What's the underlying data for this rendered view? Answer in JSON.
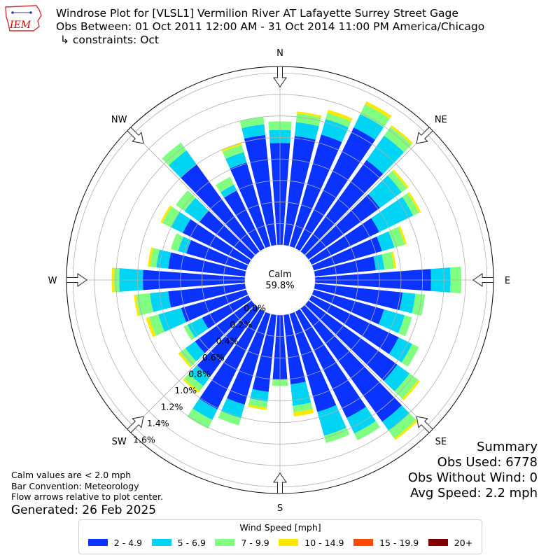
{
  "title": {
    "line1": "Windrose Plot for [VLSL1] Vermilion River  AT Lafayette  Surrey Street Gage",
    "line2": "Obs Between: 01 Oct 2011 12:00 AM - 31 Oct 2014 11:00 PM America/Chicago",
    "line3": "↳ constraints: Oct"
  },
  "logo": {
    "text": "IEM",
    "icon": "iowa-state-outline-logo",
    "color": "#cc0000"
  },
  "calm": {
    "label": "Calm",
    "value": "59.8%"
  },
  "notes": [
    "Calm values are < 2.0 mph",
    "Bar Convention: Meteorology",
    "Flow arrows relative to plot center."
  ],
  "generated": "Generated: 26 Feb 2025",
  "summary": {
    "title": "Summary",
    "obs_used": "Obs Used: 6778",
    "obs_without_wind": "Obs Without Wind: 0",
    "avg_speed": "Avg Speed: 2.2 mph"
  },
  "legend": {
    "title": "Wind Speed [mph]",
    "items": [
      {
        "label": "2 - 4.9",
        "color": "#0a33ff"
      },
      {
        "label": "5 - 6.9",
        "color": "#00d4f5"
      },
      {
        "label": "7 - 9.9",
        "color": "#80ff80"
      },
      {
        "label": "10 - 14.9",
        "color": "#ffe800"
      },
      {
        "label": "15 - 19.9",
        "color": "#ff4a00"
      },
      {
        "label": "20+",
        "color": "#800000"
      }
    ]
  },
  "chart_data": {
    "type": "windrose",
    "direction_labels": [
      "N",
      "NE",
      "E",
      "SE",
      "S",
      "SW",
      "W",
      "NW"
    ],
    "direction_angles_deg": [
      0,
      45,
      90,
      135,
      180,
      225,
      270,
      315
    ],
    "radial_tick_labels": [
      "0.0%",
      "0.2%",
      "0.4%",
      "0.6%",
      "0.8%",
      "1.0%",
      "1.2%",
      "1.4%",
      "1.6%"
    ],
    "radial_ticks": [
      0,
      0.2,
      0.4,
      0.6,
      0.8,
      1.0,
      1.2,
      1.4,
      1.6
    ],
    "r_max": 1.66,
    "grid": true,
    "legend_position": "bottom",
    "bin_colors": [
      "#0a33ff",
      "#00d4f5",
      "#80ff80",
      "#ffe800",
      "#ff4a00",
      "#800000"
    ],
    "directions_deg": [
      0,
      10,
      20,
      30,
      40,
      50,
      60,
      70,
      80,
      90,
      100,
      110,
      120,
      130,
      140,
      150,
      160,
      170,
      180,
      190,
      200,
      210,
      220,
      230,
      240,
      250,
      260,
      270,
      280,
      290,
      300,
      310,
      320,
      330,
      340,
      350
    ],
    "series": [
      {
        "name": "2 - 4.9",
        "values": [
          0.95,
          1.02,
          1.08,
          1.25,
          1.05,
          0.82,
          0.7,
          0.66,
          0.57,
          1.08,
          0.82,
          0.68,
          0.9,
          1.02,
          1.3,
          1.1,
          0.95,
          0.65,
          0.6,
          0.72,
          0.88,
          1.01,
          0.78,
          0.65,
          0.48,
          0.63,
          0.72,
          0.95,
          0.72,
          0.58,
          0.68,
          0.6,
          1.0,
          0.6,
          0.81,
          1.03
        ]
      },
      {
        "name": "5 - 6.9",
        "values": [
          0.12,
          0.13,
          0.15,
          0.14,
          0.28,
          0.25,
          0.35,
          0.12,
          0.08,
          0.18,
          0.12,
          0.2,
          0.14,
          0.14,
          0.1,
          0.16,
          0.23,
          0.2,
          0.0,
          0.09,
          0.13,
          0.11,
          0.11,
          0.11,
          0.15,
          0.22,
          0.17,
          0.22,
          0.11,
          0.08,
          0.12,
          0.17,
          0.16,
          0.06,
          0.1,
          0.1
        ]
      },
      {
        "name": "7 - 9.9",
        "values": [
          0.08,
          0.08,
          0.06,
          0.1,
          0.1,
          0.06,
          0.06,
          0.1,
          0.09,
          0.1,
          0.09,
          0.07,
          0.07,
          0.1,
          0.09,
          0.07,
          0.07,
          0.06,
          0.06,
          0.06,
          0.07,
          0.09,
          0.06,
          0.06,
          0.04,
          0.09,
          0.13,
          0.05,
          0.06,
          0.07,
          0.09,
          0.1,
          0.09,
          0.08,
          0.07,
          0.07
        ]
      },
      {
        "name": "10 - 14.9",
        "values": [
          0.0,
          0.02,
          0.03,
          0.03,
          0.02,
          0.02,
          0.02,
          0.02,
          0.02,
          0.0,
          0.0,
          0.0,
          0.0,
          0.02,
          0.02,
          0.0,
          0.0,
          0.04,
          0.0,
          0.02,
          0.0,
          0.0,
          0.02,
          0.02,
          0.0,
          0.03,
          0.02,
          0.02,
          0.02,
          0.0,
          0.02,
          0.0,
          0.0,
          0.0,
          0.02,
          0.0
        ]
      },
      {
        "name": "15 - 19.9",
        "values": [
          0,
          0,
          0,
          0,
          0,
          0,
          0,
          0,
          0,
          0,
          0,
          0,
          0,
          0,
          0,
          0,
          0,
          0,
          0,
          0,
          0,
          0,
          0,
          0,
          0,
          0,
          0,
          0,
          0,
          0,
          0,
          0,
          0,
          0,
          0,
          0
        ]
      },
      {
        "name": "20+",
        "values": [
          0,
          0,
          0,
          0,
          0,
          0,
          0,
          0,
          0,
          0,
          0,
          0,
          0,
          0,
          0,
          0,
          0,
          0,
          0,
          0,
          0,
          0,
          0,
          0,
          0,
          0,
          0,
          0,
          0,
          0,
          0,
          0,
          0,
          0,
          0,
          0
        ]
      }
    ]
  }
}
